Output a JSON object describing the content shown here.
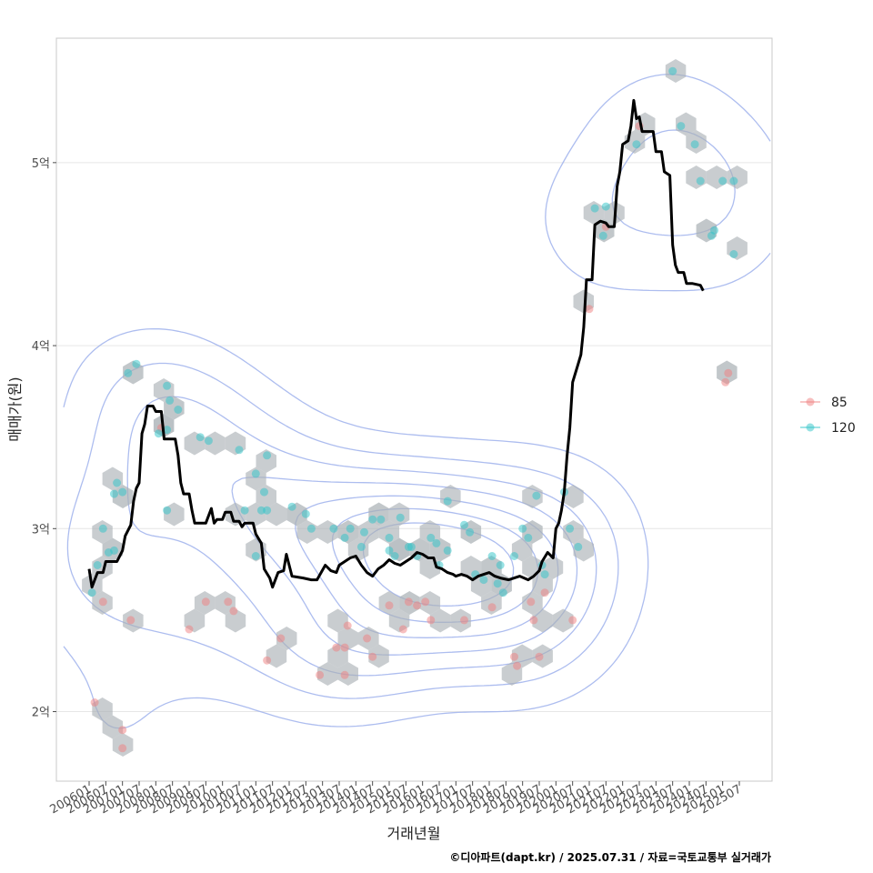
{
  "chart_data": {
    "type": "line",
    "xlabel": "거래년월",
    "ylabel": "매매가(원)",
    "caption": "©디아파트(dapt.kr) / 2025.07.31 / 자료=국토교통부 실거래가",
    "xlim": [
      "2006-01",
      "2025-07"
    ],
    "ylim": [
      1.62,
      5.68
    ],
    "yunit": "억",
    "y_ticks": [
      {
        "value": 2,
        "label": "2억"
      },
      {
        "value": 3,
        "label": "3억"
      },
      {
        "value": 4,
        "label": "4억"
      },
      {
        "value": 5,
        "label": "5억"
      }
    ],
    "x_ticks": [
      "200601",
      "200607",
      "200701",
      "200707",
      "200801",
      "200807",
      "200901",
      "200907",
      "201001",
      "201007",
      "201101",
      "201107",
      "201201",
      "201207",
      "201301",
      "201307",
      "201401",
      "201407",
      "201501",
      "201507",
      "201601",
      "201607",
      "201701",
      "201707",
      "201801",
      "201807",
      "201901",
      "201907",
      "202001",
      "202007",
      "202101",
      "202107",
      "202201",
      "202207",
      "202301",
      "202307",
      "202401",
      "202407",
      "202501",
      "202507"
    ],
    "grid": true,
    "legend_position": "right",
    "colors": {
      "line": "#000000",
      "hex": "#a9b0b5",
      "contour": "#9fb1ec",
      "s85": "#f08080",
      "s120": "#2ec4c8"
    },
    "series": [
      {
        "name": "85",
        "kind": "points",
        "values": [
          [
            "2006-03",
            2.05
          ],
          [
            "2006-06",
            2.6
          ],
          [
            "2007-01",
            1.9
          ],
          [
            "2007-01",
            1.8
          ],
          [
            "2007-04",
            2.5
          ],
          [
            "2008-03",
            3.55
          ],
          [
            "2009-01",
            2.45
          ],
          [
            "2009-07",
            2.6
          ],
          [
            "2010-03",
            2.6
          ],
          [
            "2010-05",
            2.55
          ],
          [
            "2011-05",
            2.28
          ],
          [
            "2011-10",
            2.4
          ],
          [
            "2012-12",
            2.2
          ],
          [
            "2013-06",
            2.35
          ],
          [
            "2013-09",
            2.2
          ],
          [
            "2013-09",
            2.35
          ],
          [
            "2013-10",
            2.47
          ],
          [
            "2014-05",
            2.4
          ],
          [
            "2014-07",
            2.3
          ],
          [
            "2015-01",
            2.58
          ],
          [
            "2015-06",
            2.45
          ],
          [
            "2015-08",
            2.6
          ],
          [
            "2015-11",
            2.58
          ],
          [
            "2016-02",
            2.6
          ],
          [
            "2016-04",
            2.5
          ],
          [
            "2017-04",
            2.5
          ],
          [
            "2018-02",
            2.57
          ],
          [
            "2018-10",
            2.3
          ],
          [
            "2018-11",
            2.25
          ],
          [
            "2019-04",
            2.6
          ],
          [
            "2019-05",
            2.5
          ],
          [
            "2019-07",
            2.3
          ],
          [
            "2019-09",
            2.65
          ],
          [
            "2020-07",
            2.5
          ],
          [
            "2021-01",
            4.2
          ],
          [
            "2021-07",
            4.65
          ],
          [
            "2022-07",
            5.2
          ],
          [
            "2025-02",
            3.8
          ],
          [
            "2025-03",
            3.85
          ]
        ]
      },
      {
        "name": "120",
        "kind": "points",
        "values": [
          [
            "2006-02",
            2.65
          ],
          [
            "2006-04",
            2.8
          ],
          [
            "2006-06",
            3.0
          ],
          [
            "2006-08",
            2.87
          ],
          [
            "2006-10",
            2.88
          ],
          [
            "2006-10",
            3.19
          ],
          [
            "2006-11",
            3.25
          ],
          [
            "2007-01",
            3.2
          ],
          [
            "2007-03",
            3.85
          ],
          [
            "2007-06",
            3.9
          ],
          [
            "2008-02",
            3.52
          ],
          [
            "2008-05",
            3.1
          ],
          [
            "2008-05",
            3.54
          ],
          [
            "2008-05",
            3.78
          ],
          [
            "2008-06",
            3.7
          ],
          [
            "2008-09",
            3.65
          ],
          [
            "2009-05",
            3.5
          ],
          [
            "2009-08",
            3.48
          ],
          [
            "2010-07",
            3.43
          ],
          [
            "2010-09",
            3.1
          ],
          [
            "2011-01",
            3.3
          ],
          [
            "2011-01",
            2.85
          ],
          [
            "2011-03",
            3.1
          ],
          [
            "2011-04",
            3.2
          ],
          [
            "2011-05",
            3.4
          ],
          [
            "2011-05",
            3.1
          ],
          [
            "2012-02",
            3.12
          ],
          [
            "2012-07",
            3.08
          ],
          [
            "2012-09",
            3.0
          ],
          [
            "2013-05",
            3.0
          ],
          [
            "2013-09",
            2.95
          ],
          [
            "2013-11",
            3.0
          ],
          [
            "2014-03",
            2.9
          ],
          [
            "2014-04",
            2.98
          ],
          [
            "2014-07",
            3.05
          ],
          [
            "2014-10",
            3.05
          ],
          [
            "2015-01",
            2.95
          ],
          [
            "2015-01",
            2.88
          ],
          [
            "2015-03",
            2.85
          ],
          [
            "2015-05",
            3.06
          ],
          [
            "2015-08",
            2.9
          ],
          [
            "2015-09",
            2.9
          ],
          [
            "2015-11",
            2.85
          ],
          [
            "2016-04",
            2.95
          ],
          [
            "2016-06",
            2.92
          ],
          [
            "2016-07",
            2.8
          ],
          [
            "2016-10",
            3.15
          ],
          [
            "2016-10",
            2.88
          ],
          [
            "2017-04",
            3.02
          ],
          [
            "2017-06",
            2.98
          ],
          [
            "2017-08",
            2.75
          ],
          [
            "2017-11",
            2.72
          ],
          [
            "2018-02",
            2.85
          ],
          [
            "2018-04",
            2.7
          ],
          [
            "2018-05",
            2.8
          ],
          [
            "2018-06",
            2.65
          ],
          [
            "2018-10",
            2.85
          ],
          [
            "2019-01",
            3.0
          ],
          [
            "2019-03",
            2.95
          ],
          [
            "2019-06",
            3.18
          ],
          [
            "2019-08",
            2.8
          ],
          [
            "2019-09",
            2.75
          ],
          [
            "2020-04",
            3.2
          ],
          [
            "2020-06",
            3.0
          ],
          [
            "2020-09",
            2.9
          ],
          [
            "2021-03",
            4.75
          ],
          [
            "2021-06",
            4.6
          ],
          [
            "2021-07",
            4.76
          ],
          [
            "2022-06",
            5.1
          ],
          [
            "2023-07",
            5.5
          ],
          [
            "2023-10",
            5.2
          ],
          [
            "2024-03",
            5.1
          ],
          [
            "2024-05",
            4.9
          ],
          [
            "2024-09",
            4.6
          ],
          [
            "2024-10",
            4.63
          ],
          [
            "2025-01",
            4.9
          ],
          [
            "2025-05",
            4.9
          ],
          [
            "2025-05",
            4.5
          ]
        ]
      },
      {
        "name": "",
        "kind": "line",
        "values": [
          [
            "2006-01",
            2.78
          ],
          [
            "2006-02",
            2.68
          ],
          [
            "2006-04",
            2.76
          ],
          [
            "2006-06",
            2.76
          ],
          [
            "2006-07",
            2.82
          ],
          [
            "2006-09",
            2.82
          ],
          [
            "2006-11",
            2.82
          ],
          [
            "2007-01",
            2.88
          ],
          [
            "2007-02",
            2.96
          ],
          [
            "2007-04",
            3.02
          ],
          [
            "2007-05",
            3.15
          ],
          [
            "2007-06",
            3.22
          ],
          [
            "2007-07",
            3.25
          ],
          [
            "2007-08",
            3.52
          ],
          [
            "2007-09",
            3.57
          ],
          [
            "2007-10",
            3.67
          ],
          [
            "2007-12",
            3.67
          ],
          [
            "2008-01",
            3.64
          ],
          [
            "2008-03",
            3.64
          ],
          [
            "2008-04",
            3.49
          ],
          [
            "2008-06",
            3.49
          ],
          [
            "2008-08",
            3.49
          ],
          [
            "2008-09",
            3.4
          ],
          [
            "2008-10",
            3.25
          ],
          [
            "2008-11",
            3.19
          ],
          [
            "2009-01",
            3.19
          ],
          [
            "2009-02",
            3.1
          ],
          [
            "2009-03",
            3.03
          ],
          [
            "2009-05",
            3.03
          ],
          [
            "2009-07",
            3.03
          ],
          [
            "2009-09",
            3.11
          ],
          [
            "2009-10",
            3.03
          ],
          [
            "2009-11",
            3.05
          ],
          [
            "2010-01",
            3.05
          ],
          [
            "2010-02",
            3.09
          ],
          [
            "2010-04",
            3.09
          ],
          [
            "2010-05",
            3.04
          ],
          [
            "2010-07",
            3.04
          ],
          [
            "2010-08",
            3.01
          ],
          [
            "2010-09",
            3.03
          ],
          [
            "2010-12",
            3.03
          ],
          [
            "2011-01",
            2.97
          ],
          [
            "2011-03",
            2.92
          ],
          [
            "2011-04",
            2.78
          ],
          [
            "2011-06",
            2.73
          ],
          [
            "2011-07",
            2.68
          ],
          [
            "2011-09",
            2.76
          ],
          [
            "2011-11",
            2.77
          ],
          [
            "2011-12",
            2.86
          ],
          [
            "2012-02",
            2.74
          ],
          [
            "2012-06",
            2.73
          ],
          [
            "2012-09",
            2.72
          ],
          [
            "2012-11",
            2.72
          ],
          [
            "2013-02",
            2.8
          ],
          [
            "2013-04",
            2.77
          ],
          [
            "2013-06",
            2.76
          ],
          [
            "2013-07",
            2.8
          ],
          [
            "2013-09",
            2.82
          ],
          [
            "2013-11",
            2.84
          ],
          [
            "2014-01",
            2.85
          ],
          [
            "2014-03",
            2.8
          ],
          [
            "2014-05",
            2.76
          ],
          [
            "2014-07",
            2.74
          ],
          [
            "2014-09",
            2.78
          ],
          [
            "2014-11",
            2.8
          ],
          [
            "2015-01",
            2.83
          ],
          [
            "2015-03",
            2.81
          ],
          [
            "2015-05",
            2.8
          ],
          [
            "2015-07",
            2.82
          ],
          [
            "2015-09",
            2.84
          ],
          [
            "2015-11",
            2.87
          ],
          [
            "2016-01",
            2.86
          ],
          [
            "2016-03",
            2.84
          ],
          [
            "2016-05",
            2.84
          ],
          [
            "2016-06",
            2.79
          ],
          [
            "2016-08",
            2.78
          ],
          [
            "2016-10",
            2.76
          ],
          [
            "2016-12",
            2.75
          ],
          [
            "2017-01",
            2.74
          ],
          [
            "2017-03",
            2.75
          ],
          [
            "2017-05",
            2.74
          ],
          [
            "2017-07",
            2.72
          ],
          [
            "2017-09",
            2.74
          ],
          [
            "2017-11",
            2.75
          ],
          [
            "2018-01",
            2.76
          ],
          [
            "2018-03",
            2.74
          ],
          [
            "2018-05",
            2.73
          ],
          [
            "2018-08",
            2.72
          ],
          [
            "2018-10",
            2.73
          ],
          [
            "2018-12",
            2.74
          ],
          [
            "2019-03",
            2.72
          ],
          [
            "2019-05",
            2.74
          ],
          [
            "2019-07",
            2.77
          ],
          [
            "2019-08",
            2.82
          ],
          [
            "2019-10",
            2.87
          ],
          [
            "2019-12",
            2.84
          ],
          [
            "2020-01",
            3.0
          ],
          [
            "2020-02",
            3.03
          ],
          [
            "2020-03",
            3.1
          ],
          [
            "2020-04",
            3.2
          ],
          [
            "2020-05",
            3.4
          ],
          [
            "2020-06",
            3.55
          ],
          [
            "2020-07",
            3.8
          ],
          [
            "2020-09",
            3.9
          ],
          [
            "2020-10",
            3.95
          ],
          [
            "2020-11",
            4.1
          ],
          [
            "2020-12",
            4.36
          ],
          [
            "2021-02",
            4.36
          ],
          [
            "2021-03",
            4.66
          ],
          [
            "2021-05",
            4.68
          ],
          [
            "2021-07",
            4.67
          ],
          [
            "2021-08",
            4.65
          ],
          [
            "2021-10",
            4.65
          ],
          [
            "2021-11",
            4.87
          ],
          [
            "2021-12",
            4.95
          ],
          [
            "2022-01",
            5.1
          ],
          [
            "2022-03",
            5.12
          ],
          [
            "2022-04",
            5.2
          ],
          [
            "2022-05",
            5.34
          ],
          [
            "2022-06",
            5.24
          ],
          [
            "2022-07",
            5.25
          ],
          [
            "2022-08",
            5.17
          ],
          [
            "2022-10",
            5.17
          ],
          [
            "2022-12",
            5.17
          ],
          [
            "2023-01",
            5.06
          ],
          [
            "2023-03",
            5.06
          ],
          [
            "2023-04",
            4.95
          ],
          [
            "2023-06",
            4.93
          ],
          [
            "2023-07",
            4.55
          ],
          [
            "2023-08",
            4.44
          ],
          [
            "2023-09",
            4.4
          ],
          [
            "2023-11",
            4.4
          ],
          [
            "2023-12",
            4.34
          ],
          [
            "2024-02",
            4.34
          ],
          [
            "2024-05",
            4.33
          ],
          [
            "2024-06",
            4.3
          ]
        ]
      }
    ]
  }
}
